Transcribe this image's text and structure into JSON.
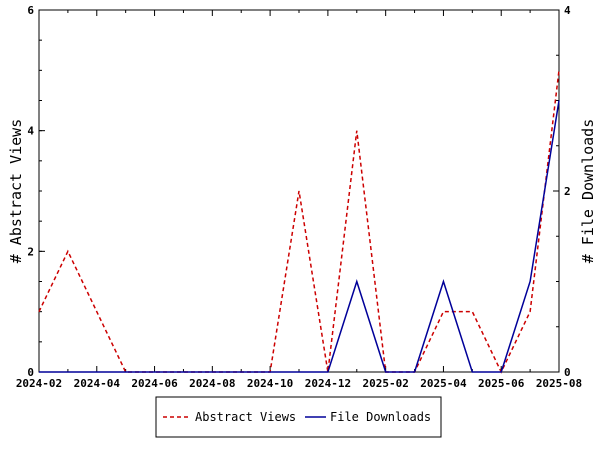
{
  "chart_data": {
    "type": "line",
    "x": [
      "2024-02",
      "2024-03",
      "2024-04",
      "2024-05",
      "2024-06",
      "2024-07",
      "2024-08",
      "2024-09",
      "2024-10",
      "2024-11",
      "2024-12",
      "2025-01",
      "2025-02",
      "2025-03",
      "2025-04",
      "2025-05",
      "2025-06",
      "2025-07",
      "2025-08"
    ],
    "x_ticks": [
      "2024-02",
      "2024-04",
      "2024-06",
      "2024-08",
      "2024-10",
      "2024-12",
      "2025-02",
      "2025-04",
      "2025-06",
      "2025-08"
    ],
    "ylabel_left": "# Abstract Views",
    "ylabel_right": "# File Downloads",
    "ylim_left": [
      0,
      6
    ],
    "ylim_right": [
      0,
      4
    ],
    "yticks_left": [
      "0",
      "2",
      "4",
      "6"
    ],
    "yticks_right": [
      "0",
      "2",
      "4"
    ],
    "grid": false,
    "legend_position": "bottom-center",
    "series": [
      {
        "name": "Abstract Views",
        "axis": "left",
        "color": "#cc0000",
        "style": "dashed",
        "values": [
          1,
          2,
          1,
          0,
          0,
          0,
          0,
          0,
          0,
          3,
          0,
          4,
          0,
          0,
          1,
          1,
          0,
          1,
          5
        ]
      },
      {
        "name": "File Downloads",
        "axis": "right",
        "color": "#000099",
        "style": "solid",
        "values": [
          0,
          0,
          0,
          0,
          0,
          0,
          0,
          0,
          0,
          0,
          0,
          1,
          0,
          0,
          1,
          0,
          0,
          1,
          3
        ]
      }
    ]
  }
}
